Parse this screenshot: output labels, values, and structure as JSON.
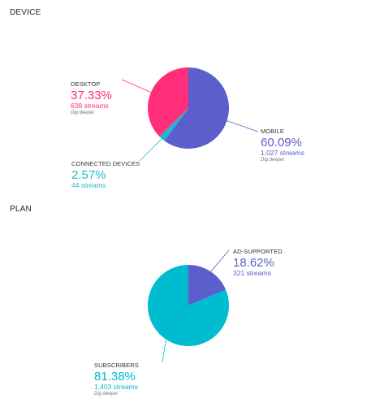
{
  "colors": {
    "desktop": "#ff2d7a",
    "mobile": "#5b5fcb",
    "connected_devices": "#1fb8c7",
    "ad_supported": "#5b5fcb",
    "subscribers": "#00bcd0"
  },
  "chart_data": [
    {
      "type": "pie",
      "title": "DEVICE",
      "slices": [
        {
          "name": "MOBILE",
          "percent": 60.09,
          "streams": 1027,
          "percent_label": "60.09%",
          "streams_label": "1,027 streams",
          "link": "Dig deeper",
          "color_key": "mobile"
        },
        {
          "name": "CONNECTED DEVICES",
          "percent": 2.57,
          "streams": 44,
          "percent_label": "2.57%",
          "streams_label": "44 streams",
          "color_key": "connected_devices"
        },
        {
          "name": "DESKTOP",
          "percent": 37.33,
          "streams": 638,
          "percent_label": "37.33%",
          "streams_label": "638 streams",
          "link": "Dig deeper",
          "color_key": "desktop"
        }
      ]
    },
    {
      "type": "pie",
      "title": "PLAN",
      "slices": [
        {
          "name": "AD-SUPPORTED",
          "percent": 18.62,
          "streams": 321,
          "percent_label": "18.62%",
          "streams_label": "321 streams",
          "color_key": "ad_supported"
        },
        {
          "name": "SUBSCRIBERS",
          "percent": 81.38,
          "streams": 1403,
          "percent_label": "81.38%",
          "streams_label": "1,403 streams",
          "link": "Dig deeper",
          "color_key": "subscribers"
        }
      ]
    }
  ]
}
